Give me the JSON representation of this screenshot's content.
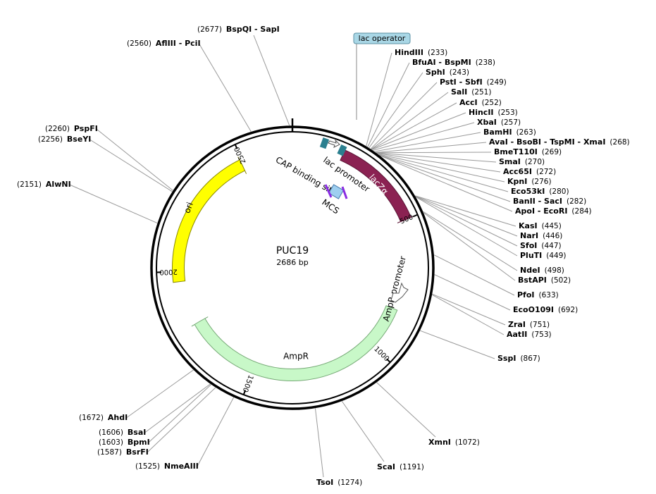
{
  "map": {
    "name": "PUC19",
    "length": "2686 bp",
    "ticks": [
      "500",
      "1000",
      "1500",
      "2000",
      "2500"
    ],
    "features": {
      "lac_operator": "lac operator",
      "lac_promoter": "lac promoter",
      "cap_site": "CAP binding site",
      "lacz": "lacZα",
      "mcs": "MCS",
      "ampr_promoter": "AmpR promoter",
      "ampr": "AmpR",
      "ori": "ori"
    },
    "sites": [
      {
        "name": "HindIII",
        "position": "(233)"
      },
      {
        "name": "BfuAI - BspMI",
        "position": "(238)"
      },
      {
        "name": "SphI",
        "position": "(243)"
      },
      {
        "name": "PstI - SbfI",
        "position": "(249)"
      },
      {
        "name": "SalI",
        "position": "(251)"
      },
      {
        "name": "AccI",
        "position": "(252)"
      },
      {
        "name": "HincII",
        "position": "(253)"
      },
      {
        "name": "XbaI",
        "position": "(257)"
      },
      {
        "name": "BamHI",
        "position": "(263)"
      },
      {
        "name": "AvaI - BsoBI - TspMI - XmaI",
        "position": "(268)"
      },
      {
        "name": "BmeT110I",
        "position": "(269)"
      },
      {
        "name": "SmaI",
        "position": "(270)"
      },
      {
        "name": "Acc65I",
        "position": "(272)"
      },
      {
        "name": "KpnI",
        "position": "(276)"
      },
      {
        "name": "Eco53kI",
        "position": "(280)"
      },
      {
        "name": "BanII - SacI",
        "position": "(282)"
      },
      {
        "name": "ApoI - EcoRI",
        "position": "(284)"
      },
      {
        "name": "KasI",
        "position": "(445)"
      },
      {
        "name": "NarI",
        "position": "(446)"
      },
      {
        "name": "SfoI",
        "position": "(447)"
      },
      {
        "name": "PluTI",
        "position": "(449)"
      },
      {
        "name": "NdeI",
        "position": "(498)"
      },
      {
        "name": "BstAPI",
        "position": "(502)"
      },
      {
        "name": "PfoI",
        "position": "(633)"
      },
      {
        "name": "EcoO109I",
        "position": "(692)"
      },
      {
        "name": "ZraI",
        "position": "(751)"
      },
      {
        "name": "AatII",
        "position": "(753)"
      },
      {
        "name": "SspI",
        "position": "(867)"
      },
      {
        "name": "XmnI",
        "position": "(1072)"
      },
      {
        "name": "ScaI",
        "position": "(1191)"
      },
      {
        "name": "TsoI",
        "position": "(1274)"
      },
      {
        "name": "BspQI - SapI",
        "position": "(2677)"
      },
      {
        "name": "AflIII - PciI",
        "position": "(2560)"
      },
      {
        "name": "PspFI",
        "position": "(2260)"
      },
      {
        "name": "BseYI",
        "position": "(2256)"
      },
      {
        "name": "AlwNI",
        "position": "(2151)"
      },
      {
        "name": "AhdI",
        "position": "(1672)"
      },
      {
        "name": "BsaI",
        "position": "(1606)"
      },
      {
        "name": "BpmI",
        "position": "(1603)"
      },
      {
        "name": "BsrFI",
        "position": "(1587)"
      },
      {
        "name": "NmeAIII",
        "position": "(1525)"
      }
    ]
  }
}
